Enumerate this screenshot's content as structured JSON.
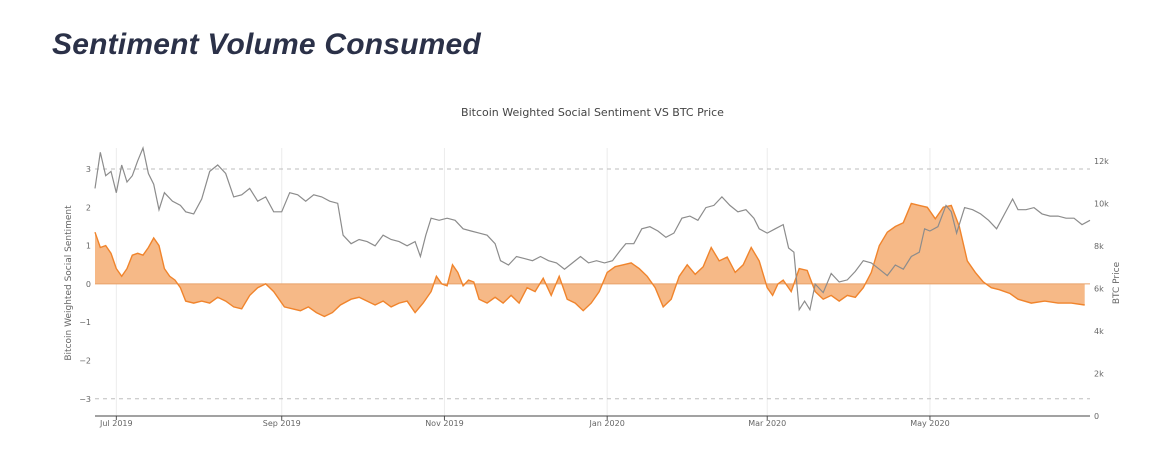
{
  "page": {
    "title": "Sentiment Volume Consumed"
  },
  "chart_data": {
    "type": "line",
    "title": "Bitcoin Weighted Social Sentiment VS BTC Price",
    "xlabel": "",
    "ylabel": "Bitcoin Weighted Social Sentiment",
    "y2label": "BTC Price",
    "ylim": [
      -3.45,
      3.55
    ],
    "y2lim": [
      0,
      12600
    ],
    "xlim": [
      "2019-06-23",
      "2020-06-30"
    ],
    "y_ticks": [
      3,
      2,
      1,
      0,
      -1,
      -2,
      -3
    ],
    "y_tick_labels": [
      "3",
      "2",
      "1",
      "0",
      "−1",
      "−2",
      "−3"
    ],
    "y2_ticks": [
      12000,
      10000,
      8000,
      6000,
      4000,
      2000,
      0
    ],
    "y2_tick_labels": [
      "12k",
      "10k",
      "8k",
      "6k",
      "4k",
      "2k",
      "0"
    ],
    "x_ticks": [
      "2019-07-01",
      "2019-09-01",
      "2019-11-01",
      "2020-01-01",
      "2020-03-01",
      "2020-05-01"
    ],
    "x_tick_labels": [
      "Jul 2019",
      "Sep 2019",
      "Nov 2019",
      "Jan 2020",
      "Mar 2020",
      "May 2020"
    ],
    "grid": true,
    "series": [
      {
        "axis": "left",
        "style": "area",
        "color": "#f0842c",
        "fill": "#f6b987",
        "points": [
          [
            "2019-06-23",
            1.35
          ],
          [
            "2019-06-25",
            0.95
          ],
          [
            "2019-06-27",
            1.0
          ],
          [
            "2019-06-29",
            0.8
          ],
          [
            "2019-07-01",
            0.4
          ],
          [
            "2019-07-03",
            0.2
          ],
          [
            "2019-07-05",
            0.4
          ],
          [
            "2019-07-07",
            0.75
          ],
          [
            "2019-07-09",
            0.8
          ],
          [
            "2019-07-11",
            0.75
          ],
          [
            "2019-07-13",
            0.95
          ],
          [
            "2019-07-15",
            1.2
          ],
          [
            "2019-07-17",
            1.0
          ],
          [
            "2019-07-19",
            0.4
          ],
          [
            "2019-07-21",
            0.2
          ],
          [
            "2019-07-23",
            0.1
          ],
          [
            "2019-07-25",
            -0.1
          ],
          [
            "2019-07-27",
            -0.45
          ],
          [
            "2019-07-30",
            -0.5
          ],
          [
            "2019-08-02",
            -0.45
          ],
          [
            "2019-08-05",
            -0.5
          ],
          [
            "2019-08-08",
            -0.35
          ],
          [
            "2019-08-11",
            -0.45
          ],
          [
            "2019-08-14",
            -0.6
          ],
          [
            "2019-08-17",
            -0.65
          ],
          [
            "2019-08-20",
            -0.3
          ],
          [
            "2019-08-23",
            -0.1
          ],
          [
            "2019-08-26",
            0.0
          ],
          [
            "2019-08-29",
            -0.2
          ],
          [
            "2019-09-02",
            -0.6
          ],
          [
            "2019-09-05",
            -0.65
          ],
          [
            "2019-09-08",
            -0.7
          ],
          [
            "2019-09-11",
            -0.6
          ],
          [
            "2019-09-14",
            -0.75
          ],
          [
            "2019-09-17",
            -0.85
          ],
          [
            "2019-09-20",
            -0.75
          ],
          [
            "2019-09-23",
            -0.55
          ],
          [
            "2019-09-27",
            -0.4
          ],
          [
            "2019-09-30",
            -0.35
          ],
          [
            "2019-10-03",
            -0.45
          ],
          [
            "2019-10-06",
            -0.55
          ],
          [
            "2019-10-09",
            -0.45
          ],
          [
            "2019-10-12",
            -0.6
          ],
          [
            "2019-10-15",
            -0.5
          ],
          [
            "2019-10-18",
            -0.45
          ],
          [
            "2019-10-21",
            -0.75
          ],
          [
            "2019-10-24",
            -0.5
          ],
          [
            "2019-10-27",
            -0.2
          ],
          [
            "2019-10-29",
            0.2
          ],
          [
            "2019-10-31",
            0.0
          ],
          [
            "2019-11-02",
            -0.05
          ],
          [
            "2019-11-04",
            0.5
          ],
          [
            "2019-11-06",
            0.3
          ],
          [
            "2019-11-08",
            -0.05
          ],
          [
            "2019-11-10",
            0.1
          ],
          [
            "2019-11-12",
            0.05
          ],
          [
            "2019-11-14",
            -0.4
          ],
          [
            "2019-11-17",
            -0.5
          ],
          [
            "2019-11-20",
            -0.35
          ],
          [
            "2019-11-23",
            -0.5
          ],
          [
            "2019-11-26",
            -0.3
          ],
          [
            "2019-11-29",
            -0.5
          ],
          [
            "2019-12-02",
            -0.1
          ],
          [
            "2019-12-05",
            -0.2
          ],
          [
            "2019-12-08",
            0.15
          ],
          [
            "2019-12-11",
            -0.3
          ],
          [
            "2019-12-14",
            0.2
          ],
          [
            "2019-12-17",
            -0.4
          ],
          [
            "2019-12-20",
            -0.5
          ],
          [
            "2019-12-23",
            -0.7
          ],
          [
            "2019-12-26",
            -0.5
          ],
          [
            "2019-12-29",
            -0.2
          ],
          [
            "2020-01-01",
            0.3
          ],
          [
            "2020-01-04",
            0.45
          ],
          [
            "2020-01-07",
            0.5
          ],
          [
            "2020-01-10",
            0.55
          ],
          [
            "2020-01-13",
            0.4
          ],
          [
            "2020-01-16",
            0.2
          ],
          [
            "2020-01-19",
            -0.1
          ],
          [
            "2020-01-22",
            -0.6
          ],
          [
            "2020-01-25",
            -0.4
          ],
          [
            "2020-01-28",
            0.2
          ],
          [
            "2020-01-31",
            0.5
          ],
          [
            "2020-02-03",
            0.25
          ],
          [
            "2020-02-06",
            0.45
          ],
          [
            "2020-02-09",
            0.95
          ],
          [
            "2020-02-12",
            0.6
          ],
          [
            "2020-02-15",
            0.7
          ],
          [
            "2020-02-18",
            0.3
          ],
          [
            "2020-02-21",
            0.5
          ],
          [
            "2020-02-24",
            0.95
          ],
          [
            "2020-02-27",
            0.6
          ],
          [
            "2020-03-01",
            -0.1
          ],
          [
            "2020-03-03",
            -0.3
          ],
          [
            "2020-03-05",
            0.0
          ],
          [
            "2020-03-07",
            0.1
          ],
          [
            "2020-03-10",
            -0.2
          ],
          [
            "2020-03-13",
            0.4
          ],
          [
            "2020-03-16",
            0.35
          ],
          [
            "2020-03-19",
            -0.2
          ],
          [
            "2020-03-22",
            -0.4
          ],
          [
            "2020-03-25",
            -0.3
          ],
          [
            "2020-03-28",
            -0.45
          ],
          [
            "2020-03-31",
            -0.3
          ],
          [
            "2020-04-03",
            -0.35
          ],
          [
            "2020-04-06",
            -0.1
          ],
          [
            "2020-04-09",
            0.3
          ],
          [
            "2020-04-12",
            1.0
          ],
          [
            "2020-04-15",
            1.35
          ],
          [
            "2020-04-18",
            1.5
          ],
          [
            "2020-04-21",
            1.6
          ],
          [
            "2020-04-24",
            2.1
          ],
          [
            "2020-04-27",
            2.05
          ],
          [
            "2020-04-30",
            2.0
          ],
          [
            "2020-05-03",
            1.7
          ],
          [
            "2020-05-06",
            2.0
          ],
          [
            "2020-05-09",
            2.05
          ],
          [
            "2020-05-12",
            1.5
          ],
          [
            "2020-05-15",
            0.6
          ],
          [
            "2020-05-18",
            0.3
          ],
          [
            "2020-05-21",
            0.05
          ],
          [
            "2020-05-24",
            -0.1
          ],
          [
            "2020-05-27",
            -0.15
          ],
          [
            "2020-05-31",
            -0.25
          ],
          [
            "2020-06-03",
            -0.4
          ],
          [
            "2020-06-08",
            -0.5
          ],
          [
            "2020-06-13",
            -0.45
          ],
          [
            "2020-06-18",
            -0.5
          ],
          [
            "2020-06-23",
            -0.5
          ],
          [
            "2020-06-28",
            -0.55
          ]
        ]
      },
      {
        "axis": "right",
        "style": "line",
        "color": "#8c8c8c",
        "points": [
          [
            "2019-06-23",
            10700
          ],
          [
            "2019-06-25",
            12400
          ],
          [
            "2019-06-27",
            11300
          ],
          [
            "2019-06-29",
            11500
          ],
          [
            "2019-07-01",
            10500
          ],
          [
            "2019-07-03",
            11800
          ],
          [
            "2019-07-05",
            11000
          ],
          [
            "2019-07-07",
            11300
          ],
          [
            "2019-07-09",
            12000
          ],
          [
            "2019-07-11",
            12600
          ],
          [
            "2019-07-13",
            11400
          ],
          [
            "2019-07-15",
            10900
          ],
          [
            "2019-07-17",
            9700
          ],
          [
            "2019-07-19",
            10500
          ],
          [
            "2019-07-22",
            10100
          ],
          [
            "2019-07-25",
            9900
          ],
          [
            "2019-07-27",
            9600
          ],
          [
            "2019-07-30",
            9500
          ],
          [
            "2019-08-02",
            10200
          ],
          [
            "2019-08-05",
            11500
          ],
          [
            "2019-08-08",
            11800
          ],
          [
            "2019-08-11",
            11400
          ],
          [
            "2019-08-14",
            10300
          ],
          [
            "2019-08-17",
            10400
          ],
          [
            "2019-08-20",
            10700
          ],
          [
            "2019-08-23",
            10100
          ],
          [
            "2019-08-26",
            10300
          ],
          [
            "2019-08-29",
            9600
          ],
          [
            "2019-09-01",
            9600
          ],
          [
            "2019-09-04",
            10500
          ],
          [
            "2019-09-07",
            10400
          ],
          [
            "2019-09-10",
            10100
          ],
          [
            "2019-09-13",
            10400
          ],
          [
            "2019-09-16",
            10300
          ],
          [
            "2019-09-19",
            10100
          ],
          [
            "2019-09-22",
            10000
          ],
          [
            "2019-09-24",
            8500
          ],
          [
            "2019-09-27",
            8100
          ],
          [
            "2019-09-30",
            8300
          ],
          [
            "2019-10-03",
            8200
          ],
          [
            "2019-10-06",
            8000
          ],
          [
            "2019-10-09",
            8500
          ],
          [
            "2019-10-12",
            8300
          ],
          [
            "2019-10-15",
            8200
          ],
          [
            "2019-10-18",
            8000
          ],
          [
            "2019-10-21",
            8200
          ],
          [
            "2019-10-23",
            7500
          ],
          [
            "2019-10-25",
            8500
          ],
          [
            "2019-10-27",
            9300
          ],
          [
            "2019-10-30",
            9200
          ],
          [
            "2019-11-02",
            9300
          ],
          [
            "2019-11-05",
            9200
          ],
          [
            "2019-11-08",
            8800
          ],
          [
            "2019-11-11",
            8700
          ],
          [
            "2019-11-14",
            8600
          ],
          [
            "2019-11-17",
            8500
          ],
          [
            "2019-11-20",
            8100
          ],
          [
            "2019-11-22",
            7300
          ],
          [
            "2019-11-25",
            7100
          ],
          [
            "2019-11-28",
            7500
          ],
          [
            "2019-12-01",
            7400
          ],
          [
            "2019-12-04",
            7300
          ],
          [
            "2019-12-07",
            7500
          ],
          [
            "2019-12-10",
            7300
          ],
          [
            "2019-12-13",
            7200
          ],
          [
            "2019-12-16",
            6900
          ],
          [
            "2019-12-19",
            7200
          ],
          [
            "2019-12-22",
            7500
          ],
          [
            "2019-12-25",
            7200
          ],
          [
            "2019-12-28",
            7300
          ],
          [
            "2019-12-31",
            7200
          ],
          [
            "2020-01-03",
            7300
          ],
          [
            "2020-01-06",
            7800
          ],
          [
            "2020-01-08",
            8100
          ],
          [
            "2020-01-11",
            8100
          ],
          [
            "2020-01-14",
            8800
          ],
          [
            "2020-01-17",
            8900
          ],
          [
            "2020-01-20",
            8700
          ],
          [
            "2020-01-23",
            8400
          ],
          [
            "2020-01-26",
            8600
          ],
          [
            "2020-01-29",
            9300
          ],
          [
            "2020-02-01",
            9400
          ],
          [
            "2020-02-04",
            9200
          ],
          [
            "2020-02-07",
            9800
          ],
          [
            "2020-02-10",
            9900
          ],
          [
            "2020-02-13",
            10300
          ],
          [
            "2020-02-16",
            9900
          ],
          [
            "2020-02-19",
            9600
          ],
          [
            "2020-02-22",
            9700
          ],
          [
            "2020-02-25",
            9300
          ],
          [
            "2020-02-27",
            8800
          ],
          [
            "2020-03-01",
            8600
          ],
          [
            "2020-03-04",
            8800
          ],
          [
            "2020-03-07",
            9000
          ],
          [
            "2020-03-09",
            7900
          ],
          [
            "2020-03-11",
            7700
          ],
          [
            "2020-03-13",
            5000
          ],
          [
            "2020-03-15",
            5400
          ],
          [
            "2020-03-17",
            5000
          ],
          [
            "2020-03-19",
            6200
          ],
          [
            "2020-03-22",
            5800
          ],
          [
            "2020-03-25",
            6700
          ],
          [
            "2020-03-28",
            6300
          ],
          [
            "2020-03-31",
            6400
          ],
          [
            "2020-04-03",
            6800
          ],
          [
            "2020-04-06",
            7300
          ],
          [
            "2020-04-09",
            7200
          ],
          [
            "2020-04-12",
            6900
          ],
          [
            "2020-04-15",
            6600
          ],
          [
            "2020-04-18",
            7100
          ],
          [
            "2020-04-21",
            6900
          ],
          [
            "2020-04-24",
            7500
          ],
          [
            "2020-04-27",
            7700
          ],
          [
            "2020-04-29",
            8800
          ],
          [
            "2020-05-01",
            8700
          ],
          [
            "2020-05-04",
            8900
          ],
          [
            "2020-05-07",
            9900
          ],
          [
            "2020-05-09",
            9600
          ],
          [
            "2020-05-11",
            8600
          ],
          [
            "2020-05-14",
            9800
          ],
          [
            "2020-05-17",
            9700
          ],
          [
            "2020-05-20",
            9500
          ],
          [
            "2020-05-23",
            9200
          ],
          [
            "2020-05-26",
            8800
          ],
          [
            "2020-05-29",
            9500
          ],
          [
            "2020-06-01",
            10200
          ],
          [
            "2020-06-03",
            9700
          ],
          [
            "2020-06-06",
            9700
          ],
          [
            "2020-06-09",
            9800
          ],
          [
            "2020-06-12",
            9500
          ],
          [
            "2020-06-15",
            9400
          ],
          [
            "2020-06-18",
            9400
          ],
          [
            "2020-06-21",
            9300
          ],
          [
            "2020-06-24",
            9300
          ],
          [
            "2020-06-27",
            9000
          ],
          [
            "2020-06-30",
            9200
          ]
        ]
      }
    ]
  }
}
